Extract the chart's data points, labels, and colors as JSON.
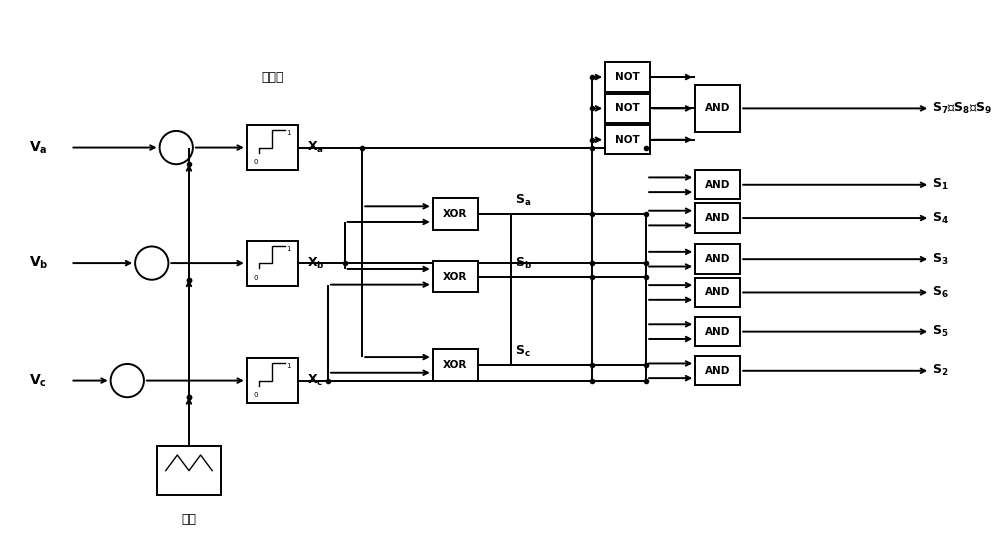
{
  "bg_color": "#ffffff",
  "line_color": "#000000",
  "figsize": [
    10.0,
    5.35
  ],
  "dpi": 100,
  "comparator_label": "比较器",
  "carrier_label": "载波",
  "Va": "V_a",
  "Vb": "V_b",
  "Vc": "V_c",
  "Xa": "X_a",
  "Xb": "X_b",
  "Xc": "X_c",
  "Sa": "S_a",
  "Sb": "S_b",
  "Sc": "S_c",
  "s789": "S₇、S₈、S₉",
  "outputs": [
    "S₁",
    "S₄",
    "S₃",
    "S₆",
    "S₅",
    "S₂"
  ]
}
